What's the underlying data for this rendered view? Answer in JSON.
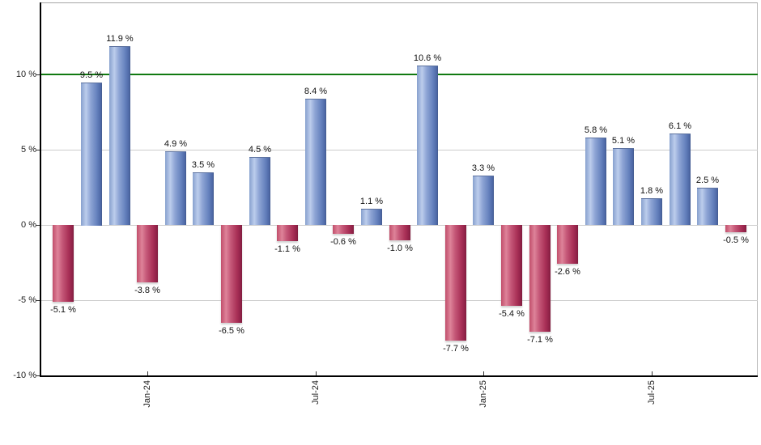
{
  "chart_data": {
    "type": "bar",
    "title": "",
    "xlabel": "",
    "ylabel": "",
    "values": [
      -5.1,
      9.5,
      11.9,
      -3.8,
      4.9,
      3.5,
      -6.5,
      4.5,
      -1.1,
      8.4,
      -0.6,
      1.1,
      -1.0,
      10.6,
      -7.7,
      3.3,
      -5.4,
      -7.1,
      -2.6,
      5.8,
      5.1,
      1.8,
      6.1,
      2.5,
      -0.5
    ],
    "value_labels": [
      "-5.1 %",
      "9.5 %",
      "11.9 %",
      "-3.8 %",
      "4.9 %",
      "3.5 %",
      "-6.5 %",
      "4.5 %",
      "-1.1 %",
      "8.4 %",
      "-0.6 %",
      "1.1 %",
      "-1.0 %",
      "10.6 %",
      "-7.7 %",
      "3.3 %",
      "-5.4 %",
      "-7.1 %",
      "-2.6 %",
      "5.8 %",
      "5.1 %",
      "1.8 %",
      "6.1 %",
      "2.5 %",
      "-0.5 %"
    ],
    "x_ticks": [
      {
        "label": "Jan-24",
        "bar_index": 3
      },
      {
        "label": "Jul-24",
        "bar_index": 9
      },
      {
        "label": "Jan-25",
        "bar_index": 15
      },
      {
        "label": "Jul-25",
        "bar_index": 21
      }
    ],
    "y_ticks": [
      {
        "label": "10 %",
        "value": 10
      },
      {
        "label": "5 %",
        "value": 5
      },
      {
        "label": "0 %",
        "value": 0
      },
      {
        "label": "-5 %",
        "value": -5
      },
      {
        "label": "-10 %",
        "value": -10
      }
    ],
    "grid_values": [
      5,
      0,
      -5
    ],
    "reference_line": {
      "value": 10,
      "color": "#117a11"
    },
    "ylim": [
      -10,
      14.8
    ],
    "legend_position": "none",
    "grid": true,
    "colors": {
      "positive_bar": "#6d8cc7",
      "positive_bar_highlight": "#bccdec",
      "negative_bar": "#c23b5e",
      "negative_bar_highlight": "#de8399",
      "reference_line": "#117a11",
      "gridline": "#cccccc",
      "axis": "#000000",
      "plot_border": "#aaaaaa",
      "label_text": "#111111",
      "background": "#ffffff"
    }
  }
}
